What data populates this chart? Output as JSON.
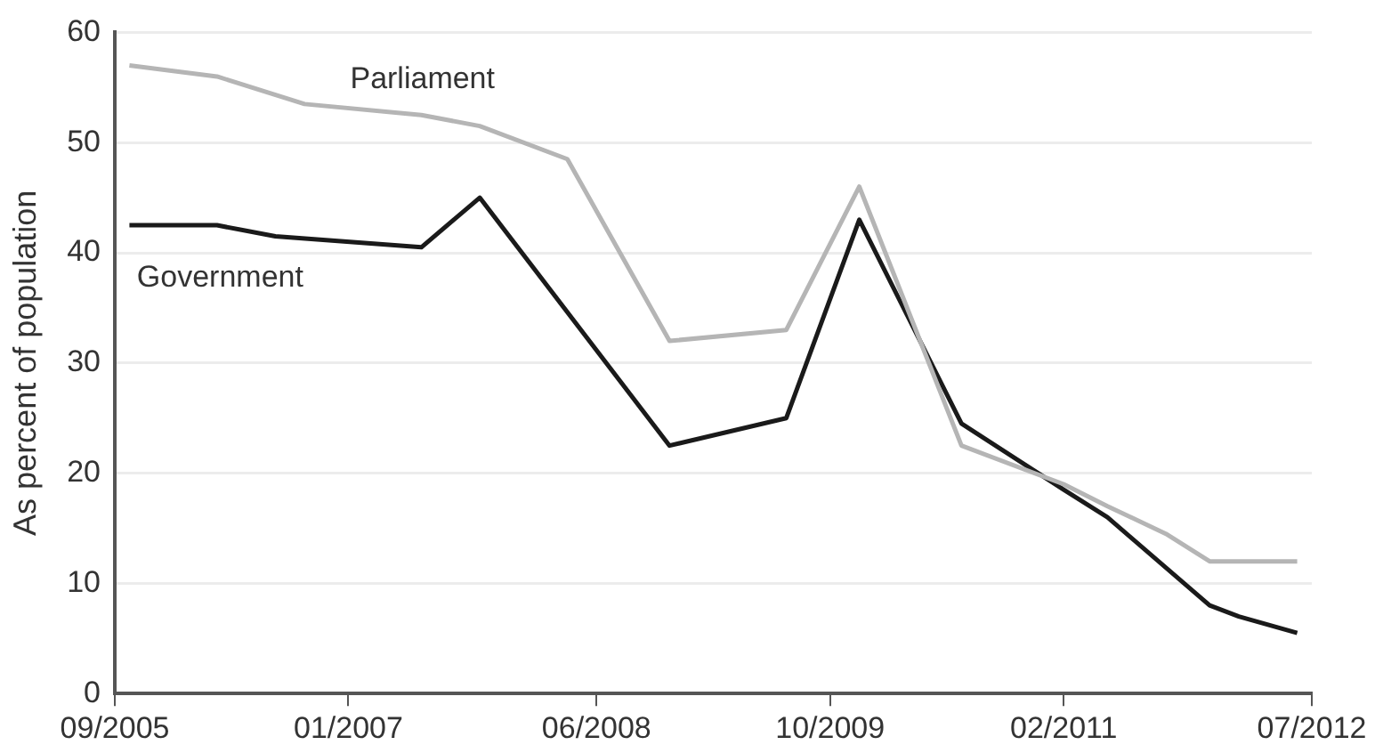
{
  "chart_data": {
    "type": "line",
    "ylabel": "As percent of population",
    "xlim": [
      "2005-09",
      "2012-07"
    ],
    "xticks": [
      {
        "value": "2005-09",
        "label": "09/2005"
      },
      {
        "value": "2007-01",
        "label": "01/2007"
      },
      {
        "value": "2008-06",
        "label": "06/2008"
      },
      {
        "value": "2009-10",
        "label": "10/2009"
      },
      {
        "value": "2011-02",
        "label": "02/2011"
      },
      {
        "value": "2012-07",
        "label": "07/2012"
      }
    ],
    "ylim": [
      0,
      60
    ],
    "yticks": [
      0,
      10,
      20,
      30,
      40,
      50,
      60
    ],
    "grid": "y",
    "legend": false,
    "marker": "none",
    "line_style": "solid",
    "series": [
      {
        "name": "Parliament",
        "color": "#b5b5b5",
        "x": [
          "2005-10",
          "2006-04",
          "2006-10",
          "2007-06",
          "2007-10",
          "2008-04",
          "2008-11",
          "2009-07",
          "2009-12",
          "2010-07",
          "2011-02",
          "2011-05",
          "2011-09",
          "2011-12",
          "2012-06"
        ],
        "values": [
          57,
          56,
          53.5,
          52.5,
          51.5,
          48.5,
          32,
          33,
          46,
          22.5,
          19,
          17,
          14.5,
          12,
          12
        ]
      },
      {
        "name": "Government",
        "color": "#1a1a1a",
        "x": [
          "2005-10",
          "2006-04",
          "2006-08",
          "2007-06",
          "2007-10",
          "2008-11",
          "2009-07",
          "2009-12",
          "2010-07",
          "2011-02",
          "2011-05",
          "2011-12",
          "2012-02",
          "2012-06"
        ],
        "values": [
          42.5,
          42.5,
          41.5,
          40.5,
          45,
          22.5,
          25,
          43,
          24.5,
          18.5,
          16,
          8,
          7,
          5.5
        ]
      }
    ]
  }
}
